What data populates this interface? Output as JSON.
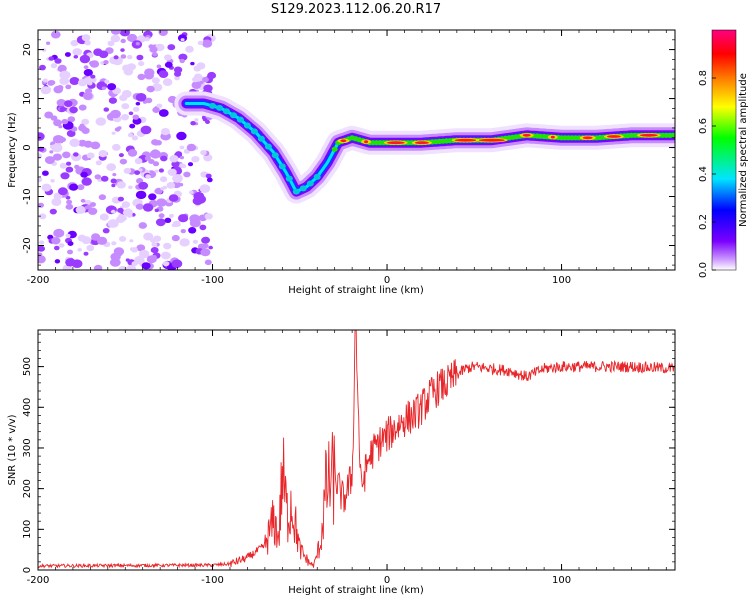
{
  "title": "S129.2023.112.06.20.R17",
  "chart_data": [
    {
      "type": "heatmap",
      "name": "spectrogram",
      "xlabel": "Height of straight line (km)",
      "ylabel": "Frequency (Hz)",
      "xlim": [
        -200,
        165
      ],
      "ylim": [
        -25,
        24
      ],
      "xticks": [
        -200,
        -100,
        0,
        100
      ],
      "xtick_labels": [
        "-200",
        "-100",
        "0",
        "100"
      ],
      "yticks": [
        -20,
        -10,
        0,
        10,
        20
      ],
      "ytick_labels": [
        "-20",
        "-10",
        "0",
        "10",
        "20"
      ],
      "ridge": {
        "x": [
          -115,
          -105,
          -95,
          -85,
          -75,
          -65,
          -58,
          -52,
          -46,
          -40,
          -34,
          -28,
          -20,
          -10,
          0,
          20,
          40,
          60,
          80,
          100,
          120,
          140,
          165
        ],
        "y": [
          9,
          9,
          8,
          6,
          3,
          -1,
          -5,
          -9,
          -8,
          -6,
          -3,
          1,
          2,
          1,
          1,
          1,
          1.5,
          1.5,
          2.5,
          2,
          2,
          2.5,
          2.5
        ]
      },
      "noise_region_x": [
        -200,
        -105
      ],
      "colorbar": {
        "label": "Normalized spectral amplitude",
        "range": [
          0,
          1
        ],
        "ticks": [
          0.0,
          0.2,
          0.4,
          0.6,
          0.8
        ],
        "tick_labels": [
          "0.0",
          "0.2",
          "0.4",
          "0.6",
          "0.8"
        ],
        "colors": [
          "#ffffff",
          "#7a00ff",
          "#0000ff",
          "#00e5ff",
          "#00ff00",
          "#ffff00",
          "#ff6a00",
          "#ff0000",
          "#ff0080"
        ]
      }
    },
    {
      "type": "line",
      "name": "snr",
      "xlabel": "Height of straight line (km)",
      "ylabel": "SNR (10 * v/v)",
      "xlim": [
        -200,
        165
      ],
      "ylim": [
        0,
        590
      ],
      "xticks": [
        -200,
        -100,
        0,
        100
      ],
      "xtick_labels": [
        "-200",
        "-100",
        "0",
        "100"
      ],
      "yticks": [
        0,
        100,
        200,
        300,
        400,
        500
      ],
      "ytick_labels": [
        "0",
        "100",
        "200",
        "300",
        "400",
        "500"
      ],
      "color": "#e8262a",
      "series": [
        {
          "name": "SNR",
          "x": [
            -200,
            -100,
            -90,
            -80,
            -70,
            -65,
            -62,
            -60,
            -57,
            -55,
            -50,
            -45,
            -42,
            -38,
            -35,
            -30,
            -25,
            -20,
            -18,
            -15,
            -10,
            -5,
            0,
            10,
            15,
            20,
            25,
            30,
            35,
            40,
            45,
            50,
            60,
            70,
            80,
            90,
            100,
            120,
            140,
            165
          ],
          "y": [
            10,
            12,
            15,
            30,
            60,
            120,
            80,
            240,
            130,
            170,
            50,
            20,
            10,
            70,
            200,
            230,
            170,
            230,
            590,
            200,
            280,
            310,
            330,
            370,
            380,
            400,
            430,
            450,
            460,
            480,
            495,
            500,
            495,
            490,
            475,
            495,
            500,
            500,
            500,
            495
          ]
        }
      ]
    }
  ]
}
